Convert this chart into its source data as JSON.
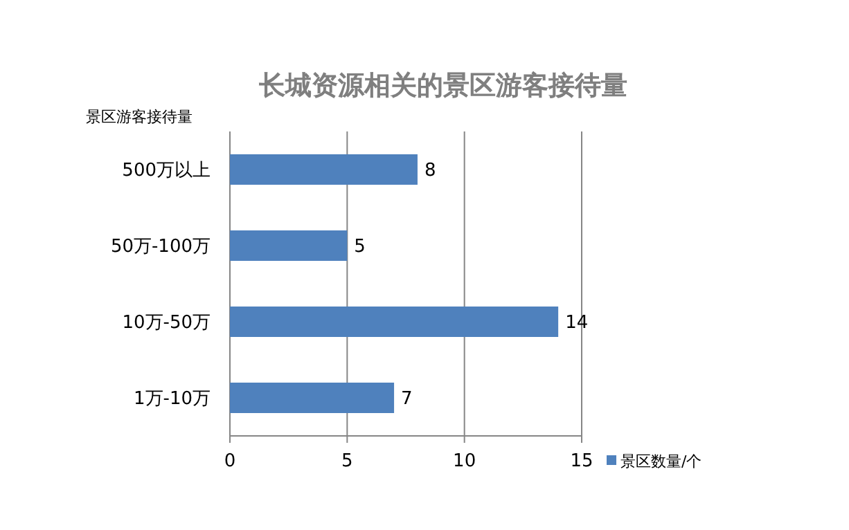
{
  "chart_data": {
    "type": "bar",
    "orientation": "horizontal",
    "title": "长城资源相关的景区游客接待量",
    "ylabel": "景区游客接待量",
    "categories": [
      "500万以上",
      "50万-100万",
      "10万-50万",
      "1万-10万"
    ],
    "series": [
      {
        "name": "景区数量/个",
        "color": "#4f81bd",
        "values": [
          8,
          5,
          14,
          7
        ]
      }
    ],
    "xlim": [
      0,
      15
    ],
    "xticks": [
      0,
      5,
      10,
      15
    ],
    "grid": "x",
    "legend": "bottom right",
    "data_labels": true
  }
}
